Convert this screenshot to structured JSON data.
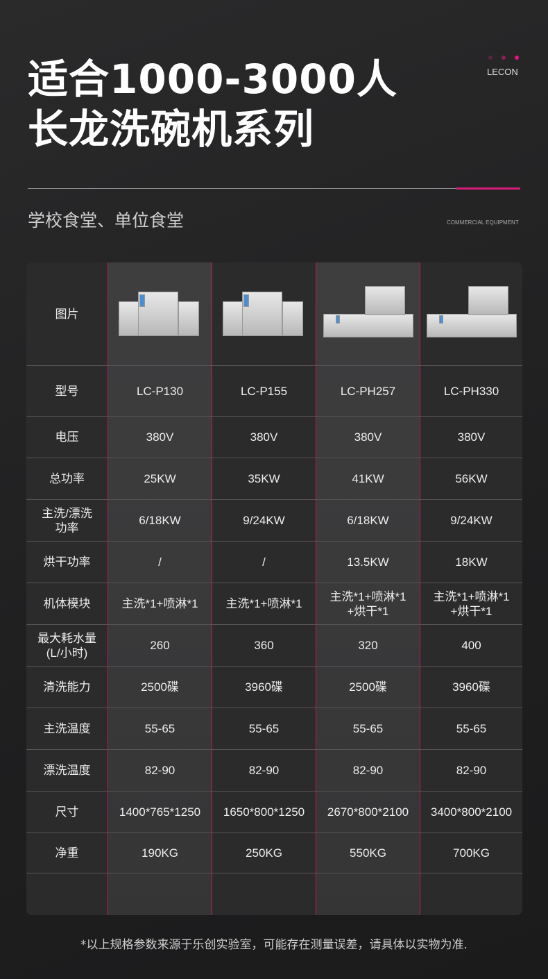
{
  "header": {
    "title_line1": "适合1000-3000人",
    "title_line2": "长龙洗碗机系列",
    "subtitle": "学校食堂、单位食堂",
    "brand": "LECON",
    "tagline": "COMMERCIAL EQUIPMENT",
    "accent": "#d81b7a"
  },
  "table": {
    "image_label": "图片",
    "rows": [
      {
        "label": "型号",
        "values": [
          "LC-P130",
          "LC-P155",
          "LC-PH257",
          "LC-PH330"
        ]
      },
      {
        "label": "电压",
        "values": [
          "380V",
          "380V",
          "380V",
          "380V"
        ]
      },
      {
        "label": "总功率",
        "values": [
          "25KW",
          "35KW",
          "41KW",
          "56KW"
        ]
      },
      {
        "label": "主洗/漂洗\n功率",
        "values": [
          "6/18KW",
          "9/24KW",
          "6/18KW",
          "9/24KW"
        ]
      },
      {
        "label": "烘干功率",
        "values": [
          "/",
          "/",
          "13.5KW",
          "18KW"
        ]
      },
      {
        "label": "机体模块",
        "values": [
          "主洗*1+喷淋*1",
          "主洗*1+喷淋*1",
          "主洗*1+喷淋*1\n+烘干*1",
          "主洗*1+喷淋*1\n+烘干*1"
        ]
      },
      {
        "label": "最大耗水量\n(L/小时)",
        "values": [
          "260",
          "360",
          "320",
          "400"
        ]
      },
      {
        "label": "清洗能力",
        "values": [
          "2500碟",
          "3960碟",
          "2500碟",
          "3960碟"
        ]
      },
      {
        "label": "主洗温度",
        "values": [
          "55-65",
          "55-65",
          "55-65",
          "55-65"
        ]
      },
      {
        "label": "漂洗温度",
        "values": [
          "82-90",
          "82-90",
          "82-90",
          "82-90"
        ]
      },
      {
        "label": "尺寸",
        "values": [
          "1400*765*1250",
          "1650*800*1250",
          "2670*800*2100",
          "3400*800*2100"
        ]
      },
      {
        "label": "净重",
        "values": [
          "190KG",
          "250KG",
          "550KG",
          "700KG"
        ]
      }
    ]
  },
  "footnote": "*以上规格参数来源于乐创实验室，可能存在测量误差，请具体以实物为准."
}
